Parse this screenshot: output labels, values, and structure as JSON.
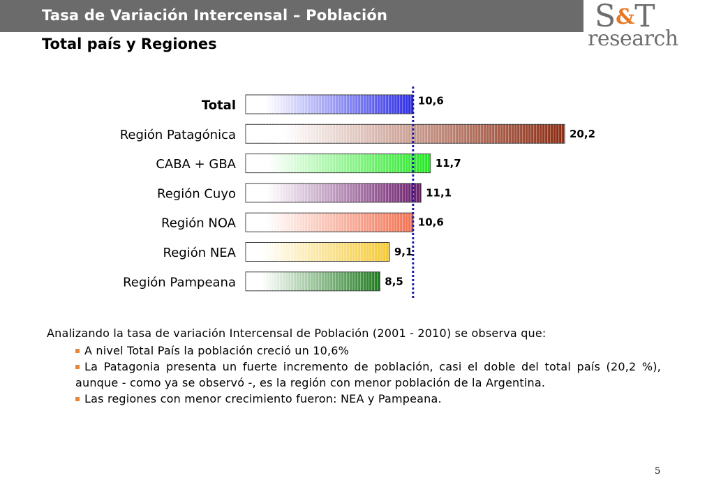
{
  "header": {
    "title": "Tasa de Variación Intercensal – Población",
    "subtitle": "Total país y Regiones"
  },
  "logo": {
    "top_left": "S",
    "ampersand": "&",
    "top_right": "T",
    "bottom": "research"
  },
  "chart_data": {
    "type": "bar",
    "orientation": "horizontal",
    "categories": [
      "Total",
      "Región Patagónica",
      "CABA + GBA",
      "Región Cuyo",
      "Región NOA",
      "Región NEA",
      "Región Pampeana"
    ],
    "values": [
      10.6,
      20.2,
      11.7,
      11.1,
      10.6,
      9.1,
      8.5
    ],
    "value_labels": [
      "10,6",
      "20,2",
      "11,7",
      "11,1",
      "10,6",
      "9,1",
      "8,5"
    ],
    "bold_categories": [
      "Total"
    ],
    "bar_colors": [
      "#2a2ae8",
      "#8b2a10",
      "#22e822",
      "#6a1a6a",
      "#f27050",
      "#f5c830",
      "#1e7a1e"
    ],
    "reference_line": {
      "value": 10.6,
      "style": "dotted",
      "color": "#1a1aa8"
    },
    "xlim": [
      0,
      20.2
    ],
    "grid": false,
    "legend": "none"
  },
  "analysis": {
    "intro": "Analizando la tasa de variación Intercensal de Población (2001 - 2010) se observa que:",
    "bullets": [
      "A nivel Total País la población creció un 10,6%",
      "La Patagonia presenta un fuerte incremento de población, casi el doble del total país (20,2 %), aunque - como ya se observó -, es la región con menor población de la Argentina.",
      "Las regiones con menor crecimiento fueron: NEA y Pampeana."
    ],
    "bullet_color": "#e8873a"
  },
  "page_number": "5"
}
